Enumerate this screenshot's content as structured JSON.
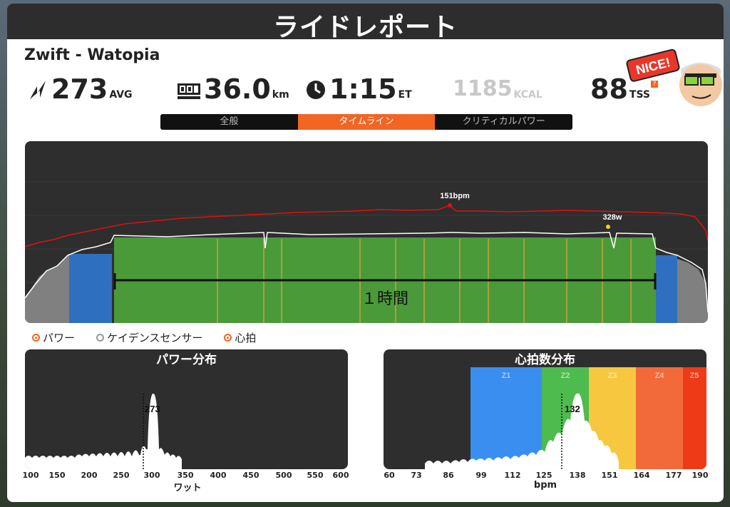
{
  "title": "ライドレポート",
  "route": "Zwift - Watopia",
  "stats": {
    "power_value": "273",
    "power_unit": "AVG",
    "distance_value": "36.0",
    "distance_unit": "km",
    "time_value": "1:15",
    "time_unit": "ET",
    "kcal_value": "1185",
    "kcal_unit": "KCAL",
    "tss_value": "88",
    "tss_unit": "TSS",
    "tss_help": "?"
  },
  "badge_text": "NICE!",
  "tabs": [
    "全般",
    "タイムライン",
    "クリティカルパワー"
  ],
  "active_tab": 1,
  "timeline": {
    "hr_peak_label": "151bpm",
    "power_peak_label": "328w",
    "interval_label": "１時間"
  },
  "legend": [
    "パワー",
    "ケイデンスセンサー",
    "心拍"
  ],
  "power_hist": {
    "title": "パワー分布",
    "avg_label": "273",
    "ticks": [
      "100",
      "150",
      "200",
      "250",
      "300",
      "350",
      "400",
      "450",
      "500",
      "550",
      "600"
    ],
    "xlabel": "ワット"
  },
  "hr_hist": {
    "title": "心拍数分布",
    "avg_label": "132",
    "zones": [
      "Z1",
      "Z2",
      "Z3",
      "Z4",
      "Z5"
    ],
    "ticks": [
      "60",
      "73",
      "86",
      "99",
      "112",
      "125",
      "138",
      "151",
      "164",
      "177",
      "190"
    ],
    "xlabel": "bpm"
  },
  "colors": {
    "accent": "#f26522",
    "hr_line": "#e01010",
    "z1": "#3a8ef0",
    "z2": "#4dbb4d",
    "z3": "#f7c740",
    "z4": "#f26a3a",
    "z5": "#ee3a16"
  }
}
